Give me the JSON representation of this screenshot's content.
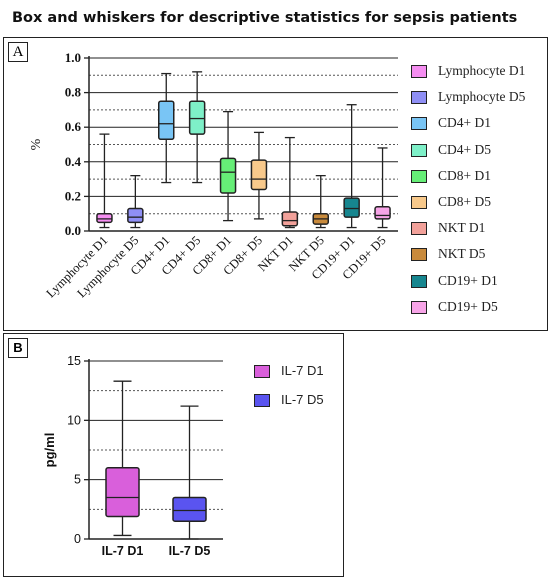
{
  "title": "Box and whiskers for descriptive statistics for sepsis patients",
  "chart_data": [
    {
      "panel": "A",
      "type": "box",
      "ylabel": "%",
      "ylim": [
        0,
        1.0
      ],
      "yticks": [
        "0.0",
        "0.2",
        "0.4",
        "0.6",
        "0.8",
        "1.0"
      ],
      "grid": "horizontal (solid at major ticks, dotted between)",
      "legend_position": "right",
      "series": [
        {
          "name": "Lymphocyte D1",
          "color": "#f58ef1",
          "min": 0.02,
          "q1": 0.05,
          "median": 0.07,
          "q3": 0.1,
          "max": 0.56
        },
        {
          "name": "Lymphocyte D5",
          "color": "#8f8ff5",
          "min": 0.02,
          "q1": 0.05,
          "median": 0.08,
          "q3": 0.13,
          "max": 0.32
        },
        {
          "name": "CD4+ D1",
          "color": "#79c5f5",
          "min": 0.28,
          "q1": 0.53,
          "median": 0.62,
          "q3": 0.75,
          "max": 0.91
        },
        {
          "name": "CD4+ D5",
          "color": "#7ef0c8",
          "min": 0.28,
          "q1": 0.56,
          "median": 0.65,
          "q3": 0.75,
          "max": 0.92
        },
        {
          "name": "CD8+ D1",
          "color": "#66ee77",
          "min": 0.06,
          "q1": 0.22,
          "median": 0.34,
          "q3": 0.42,
          "max": 0.69
        },
        {
          "name": "CD8+ D5",
          "color": "#f8c98b",
          "min": 0.07,
          "q1": 0.24,
          "median": 0.3,
          "q3": 0.41,
          "max": 0.57
        },
        {
          "name": "NKT D1",
          "color": "#f2a19a",
          "min": 0.02,
          "q1": 0.03,
          "median": 0.06,
          "q3": 0.11,
          "max": 0.54
        },
        {
          "name": "NKT D5",
          "color": "#c88a3c",
          "min": 0.02,
          "q1": 0.04,
          "median": 0.07,
          "q3": 0.1,
          "max": 0.32
        },
        {
          "name": "CD19+ D1",
          "color": "#16868f",
          "min": 0.02,
          "q1": 0.08,
          "median": 0.13,
          "q3": 0.19,
          "max": 0.73
        },
        {
          "name": "CD19+ D5",
          "color": "#f7a4e7",
          "min": 0.02,
          "q1": 0.07,
          "median": 0.09,
          "q3": 0.14,
          "max": 0.48
        }
      ]
    },
    {
      "panel": "B",
      "type": "box",
      "ylabel": "pg/ml",
      "ylim": [
        0,
        15
      ],
      "yticks": [
        "0",
        "5",
        "10",
        "15"
      ],
      "grid": "horizontal (solid at major ticks, dotted between)",
      "legend_position": "right",
      "series": [
        {
          "name": "IL-7 D1",
          "color": "#d95fdb",
          "min": 0.3,
          "q1": 1.9,
          "median": 3.5,
          "q3": 6.0,
          "max": 13.3
        },
        {
          "name": "IL-7 D5",
          "color": "#5a54f0",
          "min": 0.0,
          "q1": 1.5,
          "median": 2.4,
          "q3": 3.5,
          "max": 11.2
        }
      ]
    }
  ]
}
